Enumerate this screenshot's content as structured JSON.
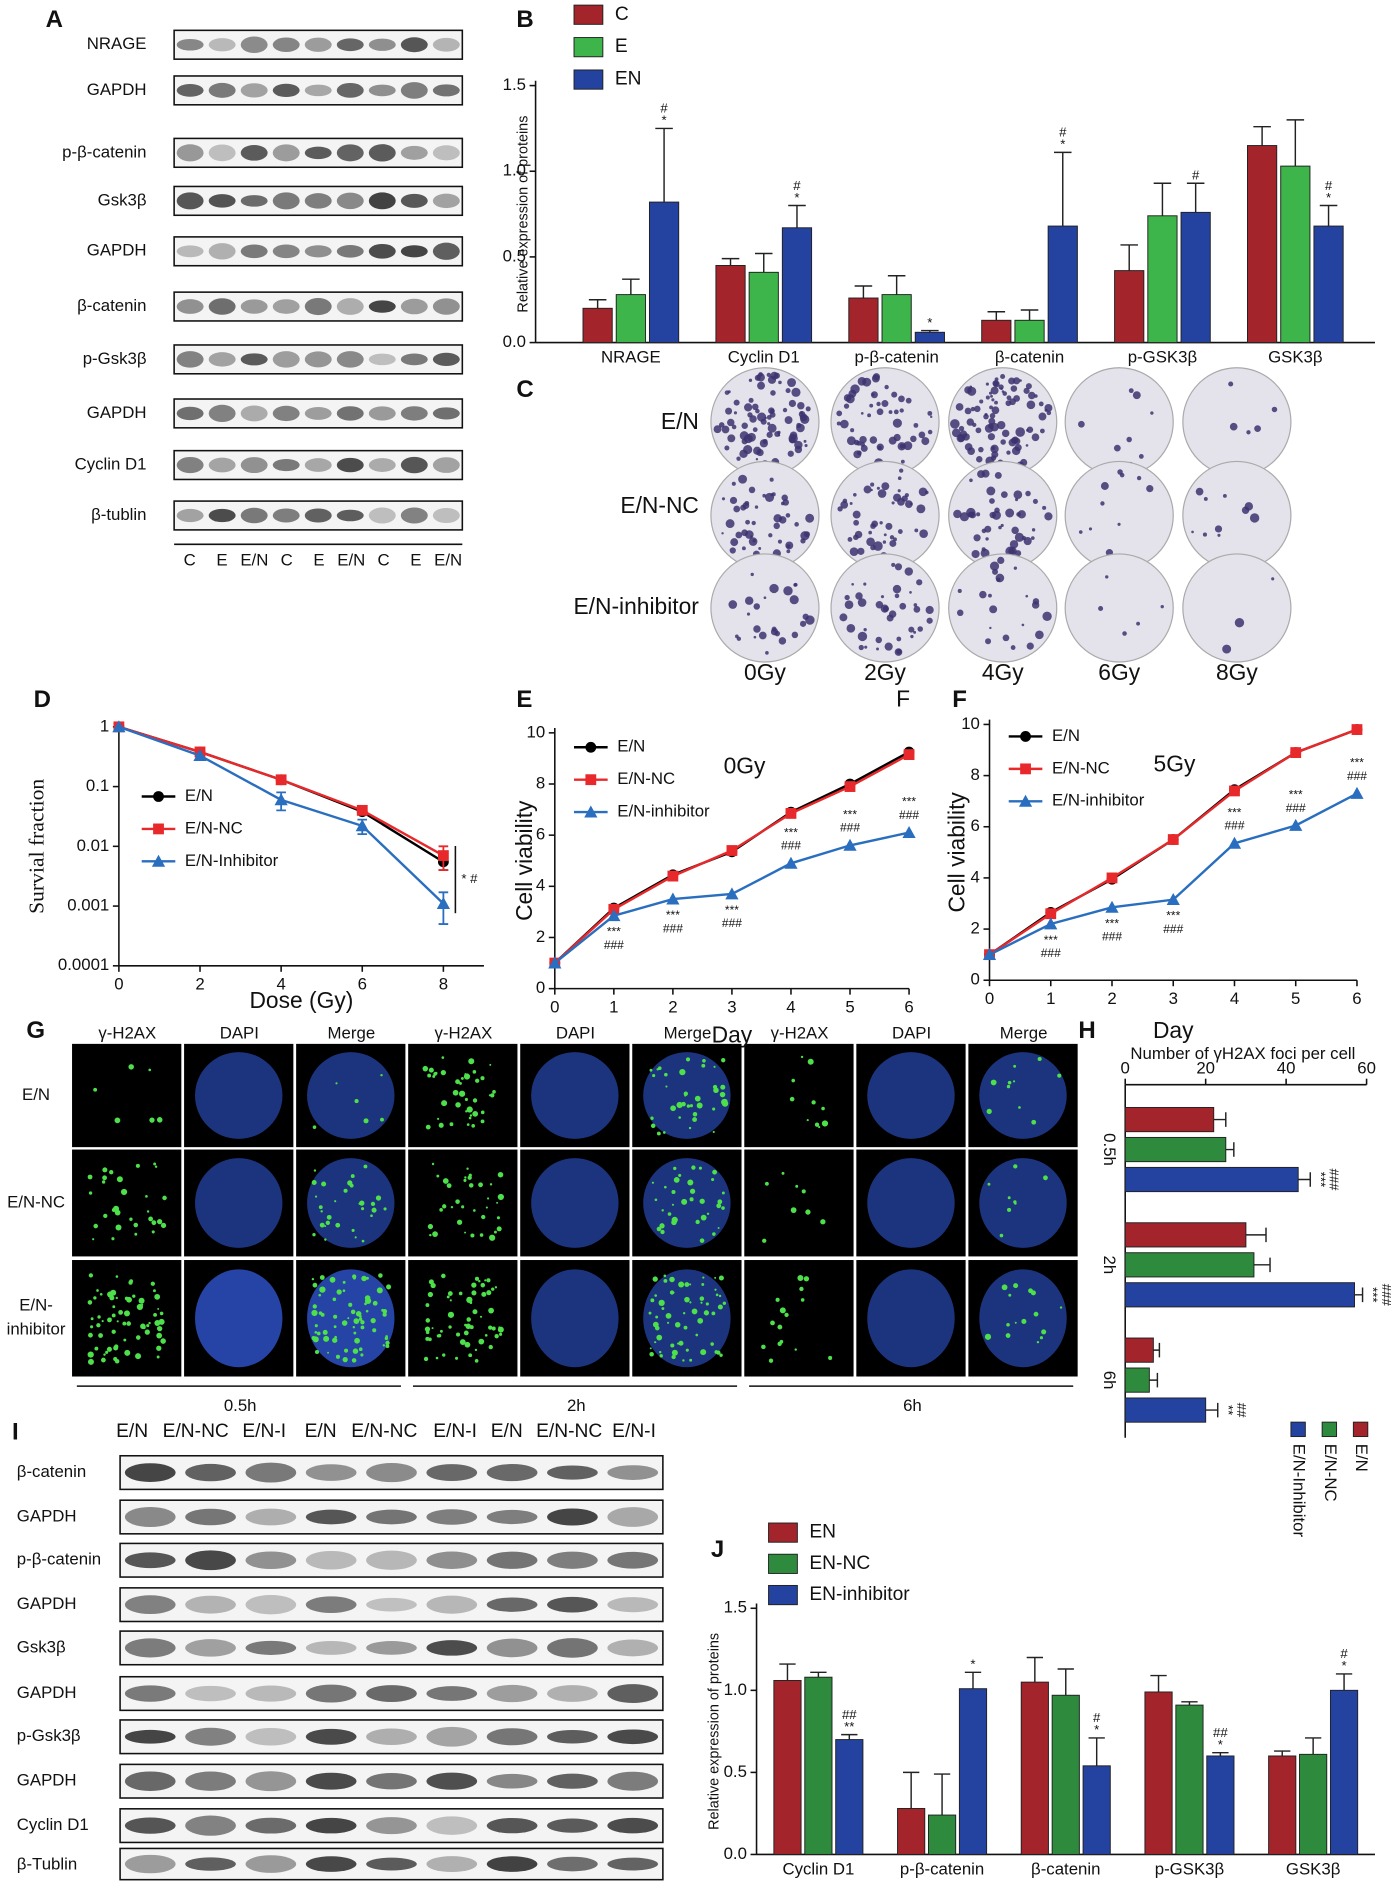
{
  "figure": {
    "panel_A": {
      "letter": "A",
      "rows": [
        "NRAGE",
        "GAPDH",
        "p-β-catenin",
        "Gsk3β",
        "GAPDH",
        "β-catenin",
        "p-Gsk3β",
        "GAPDH",
        "Cyclin D1",
        "β-tublin"
      ],
      "lanes": [
        "C",
        "E",
        "E/N",
        "C",
        "E",
        "E/N",
        "C",
        "E",
        "E/N"
      ]
    },
    "panel_C": {
      "letter": "C",
      "rows": [
        "E/N",
        "E/N-NC",
        "E/N-inhibitor"
      ],
      "doses": [
        "0Gy",
        "2Gy",
        "4Gy",
        "6Gy",
        "8Gy"
      ]
    },
    "panel_G": {
      "letter": "G",
      "channels": [
        "γ-H2AX",
        "DAPI",
        "Merge",
        "γ-H2AX",
        "DAPI",
        "Merge",
        "γ-H2AX",
        "DAPI",
        "Merge"
      ],
      "rows": [
        [
          "E/N"
        ],
        [
          "E/N-NC"
        ],
        [
          "E/N-",
          "inhibitor"
        ]
      ],
      "times": [
        "0.5h",
        "2h",
        "6h"
      ]
    },
    "panel_I": {
      "letter": "I",
      "lanes": [
        "E/N",
        "E/N-NC",
        "E/N-I",
        "E/N",
        "E/N-NC",
        "E/N-I",
        "E/N",
        "E/N-NC",
        "E/N-I"
      ],
      "rows": [
        "β-catenin",
        "GAPDH",
        "p-β-catenin",
        "GAPDH",
        "Gsk3β",
        "GAPDH",
        "p-Gsk3β",
        "GAPDH",
        "Cyclin D1",
        "β-Tublin"
      ]
    }
  },
  "chart_data": [
    {
      "letter": "B",
      "type": "bar",
      "ylabel": "Relative expression of proteins",
      "categories": [
        "NRAGE",
        "Cyclin D1",
        "p-β-catenin",
        "β-catenin",
        "p-GSK3β",
        "GSK3β"
      ],
      "ylim": [
        0,
        1.5
      ],
      "yticks": [
        {
          "value": 0,
          "label": "0.0"
        },
        0.5,
        {
          "value": 1,
          "label": "1.0"
        },
        1.5
      ],
      "series": [
        {
          "name": "C",
          "color": "#a3242b",
          "values": [
            0.2,
            0.45,
            0.26,
            0.13,
            0.42,
            1.15
          ],
          "errors": [
            0.05,
            0.04,
            0.07,
            0.05,
            0.15,
            0.11
          ]
        },
        {
          "name": "E",
          "color": "#3db54a",
          "values": [
            0.28,
            0.41,
            0.28,
            0.13,
            0.74,
            1.03
          ],
          "errors": [
            0.09,
            0.11,
            0.11,
            0.06,
            0.19,
            0.27
          ]
        },
        {
          "name": "EN",
          "color": "#2443a0",
          "values": [
            0.82,
            0.67,
            0.06,
            0.68,
            0.76,
            0.68
          ],
          "errors": [
            0.43,
            0.13,
            0.01,
            0.43,
            0.17,
            0.12
          ],
          "annotations": [
            [
              "#",
              "*"
            ],
            [
              "#",
              "*"
            ],
            [
              "*"
            ],
            [
              "#",
              "*"
            ],
            [
              "#"
            ],
            [
              "#",
              "*"
            ]
          ]
        }
      ]
    },
    {
      "letter": "D",
      "type": "line",
      "log_y": true,
      "xlabel": "Dose (Gy)",
      "ylabel": "Survial fraction",
      "bracket_label": "* #",
      "x": [
        0,
        2,
        4,
        6,
        8
      ],
      "xlim": [
        0,
        9
      ],
      "xticks": [
        0,
        2,
        4,
        6,
        8
      ],
      "ylim": [
        0.0001,
        1
      ],
      "yticks": [
        0.0001,
        0.001,
        0.01,
        0.1,
        1
      ],
      "series": [
        {
          "name": "E/N",
          "color": "#000000",
          "marker": "circle",
          "values": [
            1,
            0.38,
            0.13,
            0.038,
            0.0055
          ],
          "errors": [
            null,
            null,
            null,
            null,
            0.0015
          ]
        },
        {
          "name": "E/N-NC",
          "color": "#e8292b",
          "marker": "square",
          "values": [
            1,
            0.38,
            0.13,
            0.04,
            0.007
          ],
          "errors": [
            null,
            null,
            null,
            null,
            0.003
          ]
        },
        {
          "name": "E/N-Inhibitor",
          "color": "#2a6ebf",
          "marker": "triangle",
          "values": [
            1,
            0.33,
            0.06,
            0.022,
            0.0011
          ],
          "errors": [
            null,
            null,
            0.02,
            0.006,
            0.0006
          ]
        }
      ]
    },
    {
      "letter": "E",
      "type": "line",
      "title": "0Gy",
      "corner_label": "F",
      "xlabel": "Day",
      "ylabel": "Cell viability",
      "x": [
        0,
        1,
        2,
        3,
        4,
        5,
        6
      ],
      "xlim": [
        0,
        6
      ],
      "xticks": [
        0,
        1,
        2,
        3,
        4,
        5,
        6
      ],
      "ylim": [
        0,
        10
      ],
      "yticks": [
        0,
        2,
        4,
        6,
        8,
        10
      ],
      "series": [
        {
          "name": "E/N",
          "color": "#000000",
          "marker": "circle",
          "values": [
            1,
            3.15,
            4.45,
            5.35,
            6.9,
            8.0,
            9.25
          ]
        },
        {
          "name": "E/N-NC",
          "color": "#e8292b",
          "marker": "square",
          "values": [
            1,
            3.1,
            4.4,
            5.4,
            6.85,
            7.9,
            9.15
          ]
        },
        {
          "name": "E/N-inhibitor",
          "color": "#2a6ebf",
          "marker": "triangle",
          "values": [
            1,
            2.85,
            3.5,
            3.7,
            4.9,
            5.6,
            6.1
          ],
          "annotations": [
            null,
            [
              "***",
              "###"
            ],
            [
              "***",
              "###"
            ],
            [
              "***",
              "###"
            ],
            [
              "***",
              "###"
            ],
            [
              "***",
              "###"
            ],
            [
              "***",
              "###"
            ]
          ]
        }
      ]
    },
    {
      "letter": "F",
      "type": "line",
      "title": "5Gy",
      "xlabel": "Day",
      "ylabel": "Cell viability",
      "x": [
        0,
        1,
        2,
        3,
        4,
        5,
        6
      ],
      "xlim": [
        0,
        6
      ],
      "xticks": [
        0,
        1,
        2,
        3,
        4,
        5,
        6
      ],
      "ylim": [
        0,
        10
      ],
      "yticks": [
        0,
        2,
        4,
        6,
        8,
        10
      ],
      "series": [
        {
          "name": "E/N",
          "color": "#000000",
          "marker": "circle",
          "values": [
            1,
            2.65,
            3.95,
            5.5,
            7.45,
            8.9,
            9.8
          ]
        },
        {
          "name": "E/N-NC",
          "color": "#e8292b",
          "marker": "square",
          "values": [
            1,
            2.6,
            4.0,
            5.5,
            7.4,
            8.9,
            9.8
          ]
        },
        {
          "name": "E/N-inhibitor",
          "color": "#2a6ebf",
          "marker": "triangle",
          "values": [
            1,
            2.2,
            2.85,
            3.15,
            5.35,
            6.05,
            7.3
          ],
          "annotations": [
            null,
            [
              "***",
              "###"
            ],
            [
              "***",
              "###"
            ],
            [
              "***",
              "###"
            ],
            [
              "***",
              "###"
            ],
            [
              "***",
              "###"
            ],
            [
              "***",
              "###"
            ]
          ]
        }
      ]
    },
    {
      "letter": "H",
      "type": "hbar",
      "title": "Number of γH2AX foci per cell",
      "categories": [
        "0.5h",
        "2h",
        "6h"
      ],
      "xlim": [
        0,
        60
      ],
      "xticks": [
        0,
        20,
        40,
        60
      ],
      "series": [
        {
          "name": "E/N",
          "color": "#a3242b",
          "values": [
            22,
            30,
            7
          ],
          "errors": [
            3,
            5,
            1.5
          ]
        },
        {
          "name": "E/N-NC",
          "color": "#2e8b3e",
          "values": [
            25,
            32,
            6
          ],
          "errors": [
            2,
            4,
            2
          ]
        },
        {
          "name": "E/N-Inhibitor",
          "color": "#2443a0",
          "values": [
            43,
            57,
            20
          ],
          "errors": [
            3,
            2,
            3
          ],
          "annotations": [
            [
              "***",
              "###"
            ],
            [
              "***",
              "###"
            ],
            [
              "**",
              "##"
            ]
          ]
        }
      ]
    },
    {
      "letter": "J",
      "type": "bar",
      "ylabel": "Relative expression of proteins",
      "categories": [
        "Cyclin D1",
        "p-β-catenin",
        "β-catenin",
        "p-GSK3β",
        "GSK3β"
      ],
      "ylim": [
        0,
        1.5
      ],
      "yticks": [
        {
          "value": 0,
          "label": "0.0"
        },
        0.5,
        {
          "value": 1,
          "label": "1.0"
        },
        1.5
      ],
      "series": [
        {
          "name": "EN",
          "color": "#a3242b",
          "values": [
            1.06,
            0.28,
            1.05,
            0.99,
            0.6
          ],
          "errors": [
            0.1,
            0.22,
            0.15,
            0.1,
            0.03
          ]
        },
        {
          "name": "EN-NC",
          "color": "#2e8b3e",
          "values": [
            1.08,
            0.24,
            0.97,
            0.91,
            0.61
          ],
          "errors": [
            0.03,
            0.25,
            0.16,
            0.02,
            0.1
          ]
        },
        {
          "name": "EN-inhibitor",
          "color": "#2443a0",
          "values": [
            0.7,
            1.01,
            0.54,
            0.6,
            1.0
          ],
          "errors": [
            0.03,
            0.1,
            0.17,
            0.02,
            0.1
          ],
          "annotations": [
            [
              "##",
              "**"
            ],
            [
              "*"
            ],
            [
              "#",
              "*"
            ],
            [
              "##",
              "*"
            ],
            [
              "#",
              "*"
            ]
          ]
        }
      ]
    }
  ]
}
